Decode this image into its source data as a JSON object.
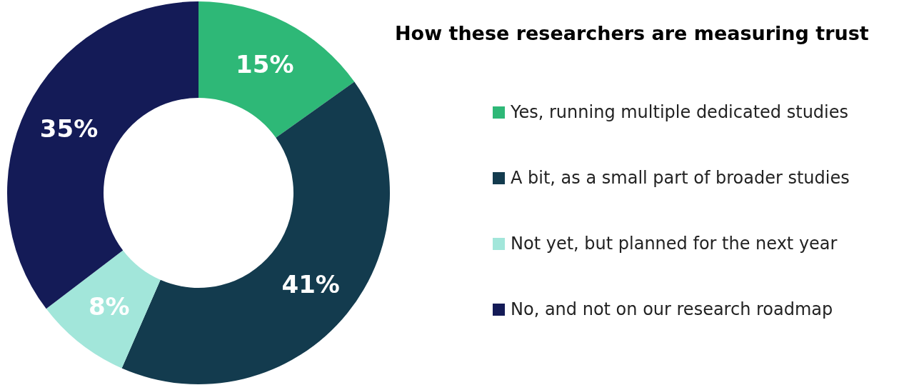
{
  "chart_data": {
    "type": "donut",
    "title": "How these researchers are measuring trust",
    "categories": [
      "Yes, running multiple dedicated studies",
      "A bit, as a small part of broader studies",
      "Not yet, but planned for the next year",
      "No, and not on our research roadmap"
    ],
    "values": [
      15,
      41,
      8,
      35
    ],
    "colors": [
      "#2eb877",
      "#133b4e",
      "#a2e6da",
      "#141b57"
    ],
    "value_labels": [
      "15%",
      "41%",
      "8%",
      "35%"
    ],
    "legend": "right"
  }
}
